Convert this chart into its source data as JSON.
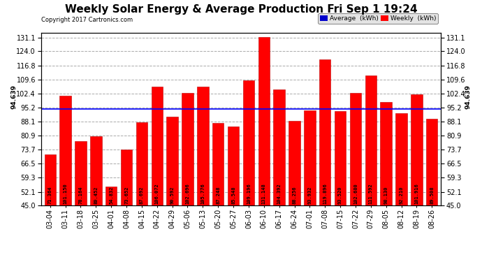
{
  "title": "Weekly Solar Energy & Average Production Fri Sep 1 19:24",
  "copyright": "Copyright 2017 Cartronics.com",
  "average_value": 94.639,
  "average_label": "94.639",
  "categories": [
    "03-04",
    "03-11",
    "03-18",
    "03-25",
    "04-01",
    "04-08",
    "04-15",
    "04-22",
    "04-29",
    "05-06",
    "05-13",
    "05-20",
    "05-27",
    "06-03",
    "06-10",
    "06-17",
    "06-24",
    "07-01",
    "07-08",
    "07-15",
    "07-22",
    "07-29",
    "08-05",
    "08-12",
    "08-19",
    "08-26"
  ],
  "values": [
    71.364,
    101.15,
    78.164,
    80.452,
    54.832,
    73.652,
    87.692,
    106.072,
    90.592,
    102.696,
    105.776,
    87.248,
    85.548,
    109.196,
    131.148,
    104.392,
    88.256,
    93.932,
    119.896,
    93.52,
    102.68,
    111.592,
    98.13,
    92.21,
    101.916,
    89.508
  ],
  "bar_color": "#FF0000",
  "bar_edge_color": "#BB0000",
  "average_line_color": "#0000FF",
  "ylim_min": 45.0,
  "ylim_max": 133.5,
  "yticks": [
    45.0,
    52.1,
    59.3,
    66.5,
    73.7,
    80.9,
    88.1,
    95.2,
    102.4,
    109.6,
    116.8,
    124.0,
    131.1
  ],
  "background_color": "#FFFFFF",
  "plot_bg_color": "#FFFFFF",
  "title_fontsize": 11,
  "tick_fontsize": 7,
  "bar_label_fontsize": 5.0,
  "legend_avg_color": "#0000CC",
  "legend_weekly_color": "#FF0000",
  "legend_avg_text": "Average  (kWh)",
  "legend_weekly_text": "Weekly  (kWh)"
}
